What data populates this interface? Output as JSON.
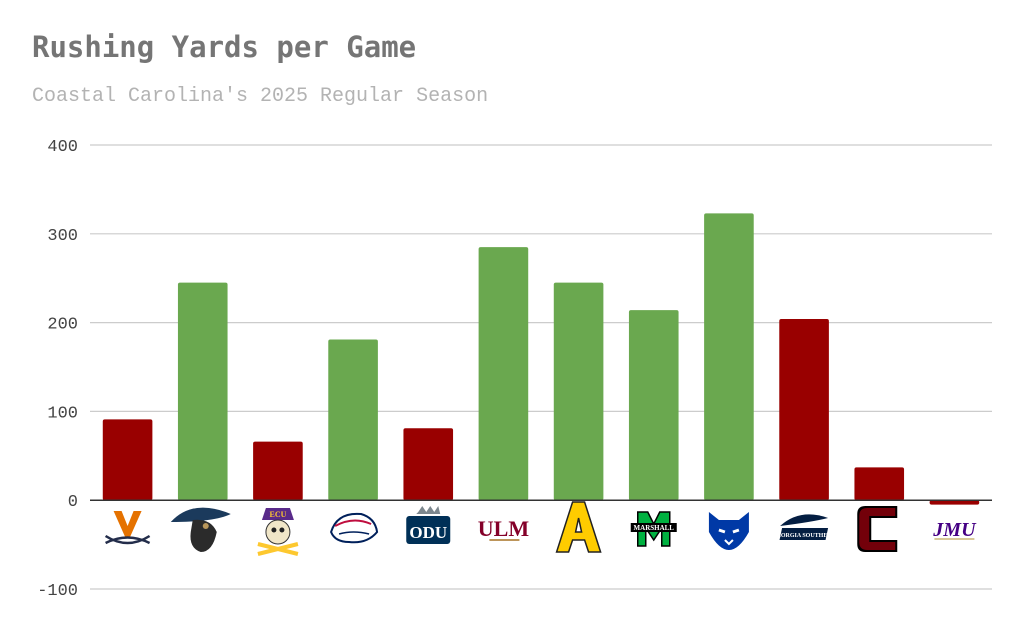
{
  "chart_data": {
    "type": "bar",
    "title": "Rushing Yards per Game",
    "subtitle": "Coastal Carolina's 2025 Regular Season",
    "xlabel": "",
    "ylabel": "",
    "ylim": [
      -100,
      400
    ],
    "yticks": [
      -100,
      0,
      100,
      200,
      300,
      400
    ],
    "grid": true,
    "categories": [
      "Virginia",
      "Charlotte",
      "East Carolina",
      "South Alabama",
      "Old Dominion",
      "Louisiana-Monroe",
      "Appalachian State",
      "Marshall",
      "Georgia State",
      "Georgia Southern",
      "South Carolina",
      "James Madison"
    ],
    "values": [
      91,
      245,
      66,
      181,
      81,
      285,
      245,
      214,
      323,
      204,
      37,
      -5
    ],
    "bar_colors": [
      "#990000",
      "#6aa84f",
      "#990000",
      "#6aa84f",
      "#990000",
      "#6aa84f",
      "#6aa84f",
      "#6aa84f",
      "#6aa84f",
      "#990000",
      "#990000",
      "#990000"
    ],
    "logos": [
      {
        "icon": "virginia-v-sabres-logo",
        "text": "",
        "color": "#e57200",
        "color2": "#232d4b"
      },
      {
        "icon": "charlotte-pirate-logo",
        "text": "",
        "color": "#1b3a5c",
        "color2": "#b9975b"
      },
      {
        "icon": "ecu-pirate-skull-logo",
        "text": "ECU",
        "color": "#592a8a",
        "color2": "#fdc82f"
      },
      {
        "icon": "south-alabama-jaguar-logo",
        "text": "",
        "color": "#00205b",
        "color2": "#bf0d3e"
      },
      {
        "icon": "odu-monarchs-logo",
        "text": "ODU",
        "color": "#003057",
        "color2": "#7c878e"
      },
      {
        "icon": "ulm-warhawks-logo",
        "text": "ULM",
        "color": "#840029",
        "color2": "#bd955a"
      },
      {
        "icon": "app-state-a-logo",
        "text": "A",
        "color": "#222222",
        "color2": "#ffcc00"
      },
      {
        "icon": "marshall-m-logo",
        "text": "MARSHALL",
        "color": "#00b140",
        "color2": "#000000"
      },
      {
        "icon": "georgia-state-panther-logo",
        "text": "",
        "color": "#0039a6",
        "color2": "#cc0000"
      },
      {
        "icon": "georgia-southern-eagle-logo",
        "text": "GEORGIA SOUTHERN",
        "color": "#041e42",
        "color2": "#a3aab0"
      },
      {
        "icon": "south-carolina-gamecock-logo",
        "text": "",
        "color": "#73000a",
        "color2": "#000000"
      },
      {
        "icon": "jmu-logo",
        "text": "JMU",
        "color": "#450084",
        "color2": "#cbb677"
      }
    ],
    "colors": {
      "positive": "#6aa84f",
      "negative": "#990000",
      "grid": "#cccccc",
      "axis": "#333333"
    }
  }
}
